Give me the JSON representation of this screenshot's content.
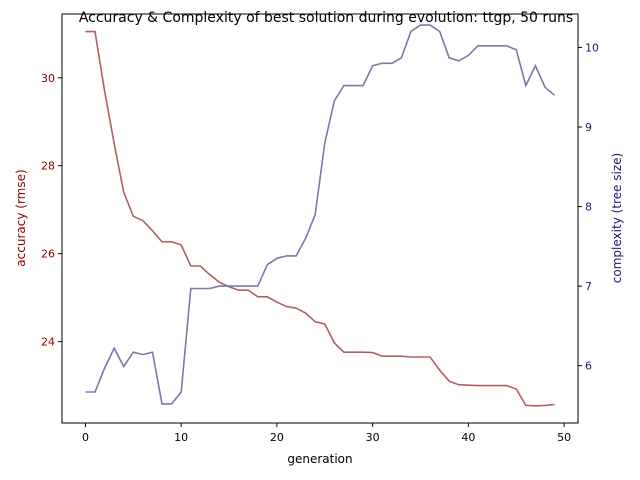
{
  "chart_data": {
    "type": "line",
    "title": "Accuracy & Complexity of best solution during evolution: ttgp, 50 runs",
    "xlabel": "generation",
    "ylabel_left": "accuracy (rmse)",
    "ylabel_right": "complexity (tree size)",
    "xlim": [
      -2.45,
      51.45
    ],
    "ylim_left": [
      22.15,
      31.45
    ],
    "ylim_right": [
      5.28,
      10.42
    ],
    "x_ticks": [
      0,
      10,
      20,
      30,
      40,
      50
    ],
    "y_left_ticks": [
      24,
      26,
      28,
      30
    ],
    "y_right_ticks": [
      6,
      7,
      8,
      9,
      10
    ],
    "colors": {
      "left_axis": "#8b0000",
      "right_axis": "#191970",
      "accuracy_line": "#b06060",
      "complexity_line": "#7a78ad"
    },
    "x": [
      0,
      1,
      2,
      3,
      4,
      5,
      6,
      7,
      8,
      9,
      10,
      11,
      12,
      13,
      14,
      15,
      16,
      17,
      18,
      19,
      20,
      21,
      22,
      23,
      24,
      25,
      26,
      27,
      28,
      29,
      30,
      31,
      32,
      33,
      34,
      35,
      36,
      37,
      38,
      39,
      40,
      41,
      42,
      43,
      44,
      45,
      46,
      47,
      48,
      49
    ],
    "series": [
      {
        "axis": "left",
        "values": [
          31.05,
          31.05,
          29.7,
          28.5,
          27.4,
          26.85,
          26.75,
          26.52,
          26.27,
          26.27,
          26.2,
          25.72,
          25.72,
          25.52,
          25.35,
          25.25,
          25.17,
          25.17,
          25.02,
          25.02,
          24.9,
          24.8,
          24.76,
          24.65,
          24.45,
          24.4,
          23.97,
          23.76,
          23.76,
          23.76,
          23.75,
          23.67,
          23.67,
          23.67,
          23.65,
          23.65,
          23.65,
          23.35,
          23.1,
          23.02,
          23.01,
          23.0,
          23.0,
          23.0,
          23.0,
          22.92,
          22.55,
          22.54,
          22.55,
          22.57
        ]
      },
      {
        "axis": "right",
        "values": [
          5.67,
          5.67,
          5.97,
          6.22,
          5.99,
          6.17,
          6.14,
          6.17,
          5.52,
          5.52,
          5.67,
          6.97,
          6.97,
          6.97,
          7.0,
          7.0,
          7.0,
          7.0,
          7.0,
          7.27,
          7.35,
          7.38,
          7.38,
          7.6,
          7.9,
          8.8,
          9.33,
          9.52,
          9.52,
          9.52,
          9.77,
          9.8,
          9.8,
          9.87,
          10.2,
          10.28,
          10.28,
          10.2,
          9.87,
          9.83,
          9.9,
          10.02,
          10.02,
          10.02,
          10.02,
          9.97,
          9.52,
          9.77,
          9.5,
          9.4
        ]
      }
    ]
  }
}
